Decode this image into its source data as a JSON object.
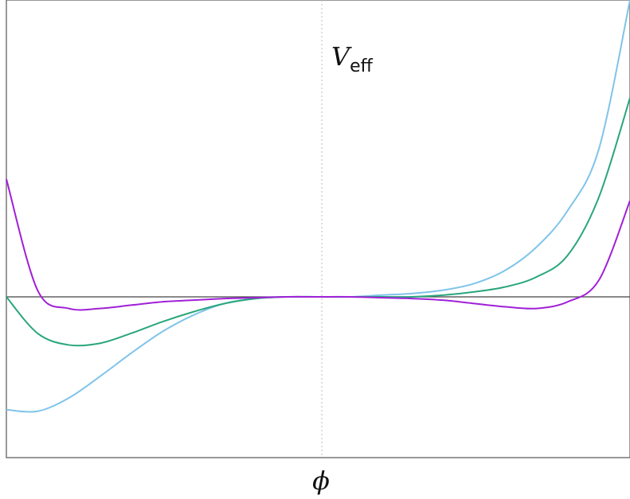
{
  "chart_data": {
    "type": "line",
    "title": "",
    "xlabel": "ϕ",
    "ylabel": {
      "main": "V",
      "subscript": "eff"
    },
    "xlim": [
      -1,
      1
    ],
    "ylim": [
      -1.0,
      1.0
    ],
    "grid": false,
    "zero_lines": {
      "horizontal": true,
      "vertical_dotted": true
    },
    "x": [
      -1,
      -0.9,
      -0.8,
      -0.7,
      -0.6,
      -0.5,
      -0.4,
      -0.3,
      -0.2,
      -0.1,
      0,
      0.1,
      0.2,
      0.3,
      0.4,
      0.5,
      0.6,
      0.7,
      0.8,
      0.9,
      1
    ],
    "series": [
      {
        "color": "#7fc4ea",
        "values": [
          -0.68,
          -0.69,
          -0.61,
          -0.48,
          -0.34,
          -0.21,
          -0.11,
          -0.04,
          -0.01,
          0.0,
          0.0,
          0.0,
          0.01,
          0.02,
          0.04,
          0.08,
          0.16,
          0.3,
          0.52,
          0.89,
          1.79
        ]
      },
      {
        "color": "#2aa67c",
        "values": [
          0.0,
          -0.22,
          -0.29,
          -0.28,
          -0.22,
          -0.15,
          -0.09,
          -0.04,
          -0.01,
          0.0,
          0.0,
          0.0,
          0.0,
          0.0,
          0.01,
          0.03,
          0.06,
          0.12,
          0.25,
          0.6,
          1.2
        ]
      },
      {
        "color": "#a020d8",
        "values": [
          0.71,
          0.04,
          -0.07,
          -0.07,
          -0.05,
          -0.03,
          -0.02,
          -0.01,
          -0.005,
          0.0,
          0.0,
          0.0,
          -0.005,
          -0.01,
          -0.02,
          -0.04,
          -0.06,
          -0.07,
          -0.03,
          0.1,
          0.58
        ]
      }
    ]
  }
}
